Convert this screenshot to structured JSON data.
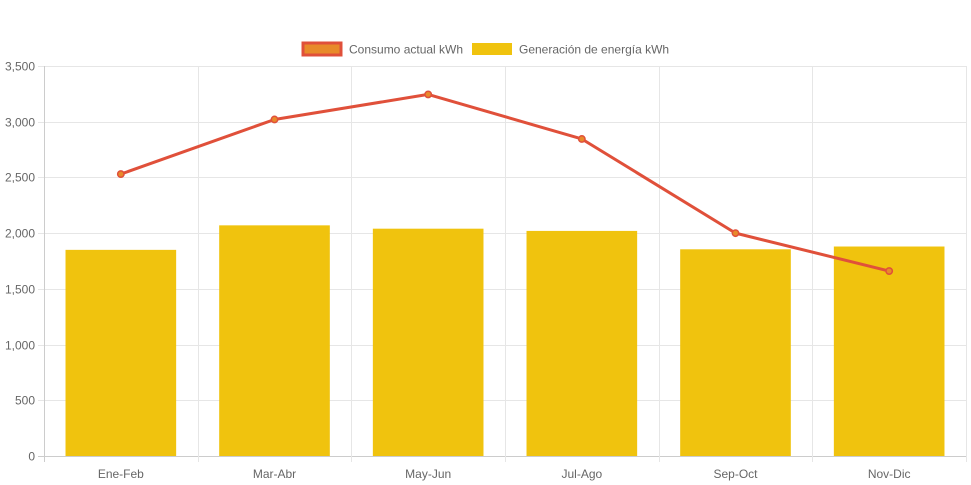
{
  "chart_data": {
    "type": "bar",
    "categories": [
      "Ene-Feb",
      "Mar-Abr",
      "May-Jun",
      "Jul-Ago",
      "Sep-Oct",
      "Nov-Dic"
    ],
    "series": [
      {
        "name": "Consumo actual kWh",
        "type": "line",
        "values": [
          2530,
          3020,
          3245,
          2845,
          2000,
          1660
        ],
        "color": "#e0503a",
        "legend_fill": "#e88a2a"
      },
      {
        "name": "Generación de energía kWh",
        "type": "bar",
        "values": [
          1850,
          2070,
          2040,
          2020,
          1855,
          1880
        ],
        "color": "#f0c30e"
      }
    ],
    "ylim": [
      0,
      3500
    ],
    "yticks": [
      0,
      500,
      1000,
      1500,
      2000,
      2500,
      3000,
      3500
    ],
    "ytick_labels": [
      "0",
      "500",
      "1,000",
      "1,500",
      "2,000",
      "2,500",
      "3,000",
      "3,500"
    ],
    "grid": true,
    "legend_position": "top-center",
    "grid_color": "#e6e6e6",
    "axis_color": "#cccccc"
  }
}
